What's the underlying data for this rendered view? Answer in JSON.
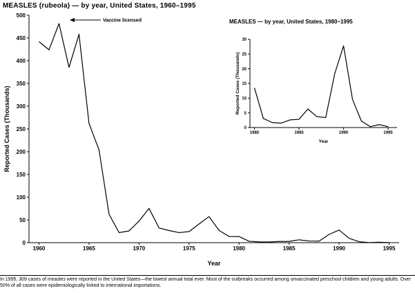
{
  "page": {
    "footnote": "In 1995, 309 cases of measles were reported in the United States—the lowest annual total ever. Most of the outbreaks occurred among unvaccinated preschool children and young adults. Over 50% of all cases were epidemiologically linked to international importations."
  },
  "chart_data": [
    {
      "id": "main",
      "type": "line",
      "title": "MEASLES (rubeola) — by year, United States, 1960–1995",
      "xlabel": "Year",
      "ylabel": "Reported Cases (Thousands)",
      "xlim": [
        1959,
        1996
      ],
      "ylim": [
        0,
        500
      ],
      "xticks": [
        1960,
        1965,
        1970,
        1975,
        1980,
        1985,
        1990,
        1995
      ],
      "yticks": [
        0,
        50,
        100,
        150,
        200,
        250,
        300,
        350,
        400,
        450,
        500
      ],
      "x": [
        1960,
        1961,
        1962,
        1963,
        1964,
        1965,
        1966,
        1967,
        1968,
        1969,
        1970,
        1971,
        1972,
        1973,
        1974,
        1975,
        1976,
        1977,
        1978,
        1979,
        1980,
        1981,
        1982,
        1983,
        1984,
        1985,
        1986,
        1987,
        1988,
        1989,
        1990,
        1991,
        1992,
        1993,
        1994,
        1995
      ],
      "values": [
        441.7,
        423.9,
        481.5,
        385.2,
        458.1,
        261.9,
        204.1,
        62.7,
        22.2,
        25.8,
        47.4,
        75.3,
        32.3,
        26.7,
        22.1,
        24.4,
        41.1,
        57.3,
        26.9,
        13.6,
        13.5,
        3.1,
        1.7,
        1.5,
        2.6,
        2.8,
        6.3,
        3.7,
        3.4,
        18.2,
        27.8,
        9.6,
        2.2,
        0.3,
        1.0,
        0.3
      ],
      "annotation": {
        "label": "Vaccine licensed",
        "year": 1963
      }
    },
    {
      "id": "inset",
      "type": "line",
      "title": "MEASLES — by year, United States, 1980–1995",
      "xlabel": "Year",
      "ylabel": "Reported Cases (Thousands)",
      "xlim": [
        1979.5,
        1996
      ],
      "ylim": [
        0,
        30
      ],
      "xticks": [
        1980,
        1985,
        1990,
        1995
      ],
      "yticks": [
        0,
        5,
        10,
        15,
        20,
        25,
        30
      ],
      "x": [
        1980,
        1981,
        1982,
        1983,
        1984,
        1985,
        1986,
        1987,
        1988,
        1989,
        1990,
        1991,
        1992,
        1993,
        1994,
        1995
      ],
      "values": [
        13.5,
        3.1,
        1.7,
        1.5,
        2.6,
        2.8,
        6.3,
        3.7,
        3.4,
        18.2,
        27.8,
        9.6,
        2.2,
        0.3,
        1.0,
        0.3
      ]
    }
  ]
}
